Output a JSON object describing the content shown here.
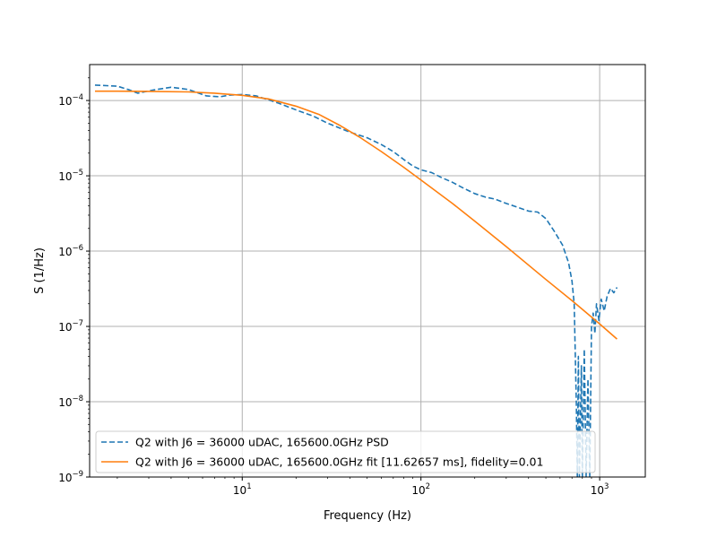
{
  "chart_data": {
    "type": "line",
    "title": "",
    "xlabel": "Frequency (Hz)",
    "ylabel": "S (1/Hz)",
    "xscale": "log",
    "yscale": "log",
    "xlim": [
      1.4,
      1800
    ],
    "ylim": [
      1e-09,
      0.0003
    ],
    "grid": true,
    "legend_location": "lower-left",
    "x_ticks": [
      {
        "value": 10,
        "label_base": "10",
        "label_exp": "1"
      },
      {
        "value": 100,
        "label_base": "10",
        "label_exp": "2"
      },
      {
        "value": 1000,
        "label_base": "10",
        "label_exp": "3"
      }
    ],
    "y_ticks": [
      {
        "value": 1e-09,
        "label_base": "10",
        "label_exp": "−9"
      },
      {
        "value": 1e-08,
        "label_base": "10",
        "label_exp": "−8"
      },
      {
        "value": 1e-07,
        "label_base": "10",
        "label_exp": "−7"
      },
      {
        "value": 1e-06,
        "label_base": "10",
        "label_exp": "−6"
      },
      {
        "value": 1e-05,
        "label_base": "10",
        "label_exp": "−5"
      },
      {
        "value": 0.0001,
        "label_base": "10",
        "label_exp": "−4"
      }
    ],
    "series": [
      {
        "name": "Q2 with J6 = 36000 uDAC, 165600.0GHz PSD",
        "color": "#1f77b4",
        "style": "dashed",
        "points": [
          [
            1.5,
            0.00016
          ],
          [
            2.0,
            0.000155
          ],
          [
            2.3,
            0.00014
          ],
          [
            2.6,
            0.000125
          ],
          [
            3.2,
            0.000138
          ],
          [
            4.0,
            0.00015
          ],
          [
            5.0,
            0.00014
          ],
          [
            6.3,
            0.000115
          ],
          [
            7.5,
            0.000112
          ],
          [
            8.5,
            0.000118
          ],
          [
            10,
            0.00012
          ],
          [
            12,
            0.000115
          ],
          [
            14,
            0.000102
          ],
          [
            16,
            9.2e-05
          ],
          [
            20,
            7.5e-05
          ],
          [
            25,
            6.2e-05
          ],
          [
            30,
            5e-05
          ],
          [
            40,
            3.8e-05
          ],
          [
            50,
            3.2e-05
          ],
          [
            60,
            2.6e-05
          ],
          [
            70,
            2.1e-05
          ],
          [
            80,
            1.65e-05
          ],
          [
            90,
            1.35e-05
          ],
          [
            100,
            1.2e-05
          ],
          [
            115,
            1.1e-05
          ],
          [
            130,
            9.5e-06
          ],
          [
            150,
            8.2e-06
          ],
          [
            170,
            7e-06
          ],
          [
            200,
            5.8e-06
          ],
          [
            230,
            5.2e-06
          ],
          [
            260,
            4.9e-06
          ],
          [
            300,
            4.3e-06
          ],
          [
            350,
            3.8e-06
          ],
          [
            400,
            3.4e-06
          ],
          [
            450,
            3.3e-06
          ],
          [
            500,
            2.7e-06
          ],
          [
            560,
            1.8e-06
          ],
          [
            620,
            1.2e-06
          ],
          [
            670,
            7e-07
          ],
          [
            700,
            4e-07
          ],
          [
            720,
            2e-07
          ],
          [
            740,
            1e-08
          ],
          [
            750,
            1e-09
          ],
          [
            760,
            4e-08
          ],
          [
            770,
            1e-09
          ],
          [
            790,
            3e-08
          ],
          [
            800,
            1e-09
          ],
          [
            820,
            5e-08
          ],
          [
            840,
            1e-09
          ],
          [
            860,
            2e-08
          ],
          [
            880,
            1e-09
          ],
          [
            900,
            1e-07
          ],
          [
            920,
            1.5e-07
          ],
          [
            940,
            8e-08
          ],
          [
            960,
            2e-07
          ],
          [
            990,
            1.2e-07
          ],
          [
            1020,
            2.3e-07
          ],
          [
            1060,
            1.6e-07
          ],
          [
            1100,
            2.5e-07
          ],
          [
            1150,
            3.2e-07
          ],
          [
            1200,
            2.8e-07
          ],
          [
            1250,
            3.3e-07
          ]
        ]
      },
      {
        "name": "Q2 with J6 = 36000 uDAC, 165600.0GHz fit [11.62657 ms], fidelity=0.01",
        "color": "#ff7f0e",
        "style": "solid",
        "points": [
          [
            1.5,
            0.000133
          ],
          [
            2,
            0.000133
          ],
          [
            3,
            0.000132
          ],
          [
            5,
            0.00013
          ],
          [
            7,
            0.000125
          ],
          [
            10,
            0.000117
          ],
          [
            14,
            0.000105
          ],
          [
            20,
            8.4e-05
          ],
          [
            27,
            6.5e-05
          ],
          [
            35,
            4.7e-05
          ],
          [
            45,
            3.3e-05
          ],
          [
            60,
            2.1e-05
          ],
          [
            80,
            1.3e-05
          ],
          [
            100,
            8.8e-06
          ],
          [
            150,
            4.3e-06
          ],
          [
            200,
            2.5e-06
          ],
          [
            300,
            1.15e-06
          ],
          [
            500,
            4.2e-07
          ],
          [
            700,
            2.2e-07
          ],
          [
            1000,
            1.08e-07
          ],
          [
            1250,
            6.8e-08
          ]
        ]
      }
    ]
  }
}
